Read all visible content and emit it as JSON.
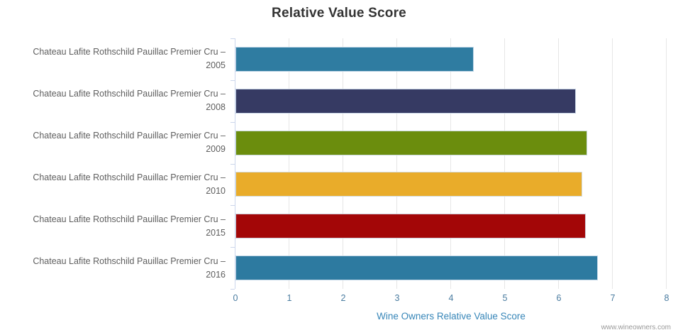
{
  "chart_data": {
    "type": "bar",
    "orientation": "horizontal",
    "title": "Relative Value Score",
    "xlabel": "Wine Owners Relative Value Score",
    "ylabel": "",
    "xlim": [
      0,
      8
    ],
    "x_ticks": [
      0,
      1,
      2,
      3,
      4,
      5,
      6,
      7,
      8
    ],
    "grid": true,
    "legend": false,
    "categories": [
      "Chateau Lafite Rothschild Pauillac Premier Cru – 2005",
      "Chateau Lafite Rothschild Pauillac Premier Cru – 2008",
      "Chateau Lafite Rothschild Pauillac Premier Cru – 2009",
      "Chateau Lafite Rothschild Pauillac Premier Cru – 2010",
      "Chateau Lafite Rothschild Pauillac Premier Cru – 2015",
      "Chateau Lafite Rothschild Pauillac Premier Cru – 2016"
    ],
    "values": [
      4.42,
      6.31,
      6.53,
      6.44,
      6.5,
      6.73
    ],
    "bar_colors": [
      "#2f7ca1",
      "#363a63",
      "#6b8d0d",
      "#e9ac2a",
      "#a30607",
      "#2d7aa0"
    ],
    "credits": "www.wineowners.com",
    "styles": {
      "title_color": "#333333",
      "category_label_color": "#5e5e5e",
      "tick_label_color": "#4a7ca0",
      "axis_title_color": "#3786b8",
      "grid_color": "#e6e6e6",
      "axis_line_color": "#ccd6eb",
      "credits_color": "#999999",
      "background_color": "#ffffff"
    }
  }
}
